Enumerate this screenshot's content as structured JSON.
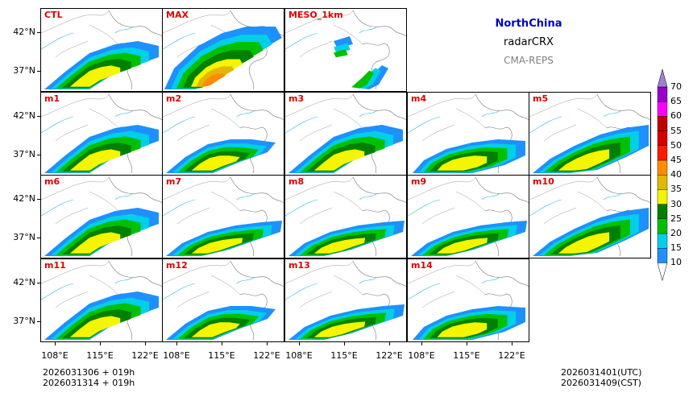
{
  "title": {
    "region": "NorthChina",
    "product": "radarCRX",
    "system": "CMA-REPS",
    "region_color": "#0000cc",
    "system_color": "#808080"
  },
  "panels": [
    {
      "label": "CTL",
      "pattern": "full"
    },
    {
      "label": "MAX",
      "pattern": "max"
    },
    {
      "label": "MESO_1km",
      "pattern": "meso"
    },
    {
      "label": "m1",
      "pattern": "full"
    },
    {
      "label": "m2",
      "pattern": "weak"
    },
    {
      "label": "m3",
      "pattern": "full"
    },
    {
      "label": "m4",
      "pattern": "south"
    },
    {
      "label": "m5",
      "pattern": "east"
    },
    {
      "label": "m6",
      "pattern": "full"
    },
    {
      "label": "m7",
      "pattern": "band"
    },
    {
      "label": "m8",
      "pattern": "band"
    },
    {
      "label": "m9",
      "pattern": "band"
    },
    {
      "label": "m10",
      "pattern": "east"
    },
    {
      "label": "m11",
      "pattern": "full"
    },
    {
      "label": "m12",
      "pattern": "weak"
    },
    {
      "label": "m13",
      "pattern": "band"
    },
    {
      "label": "m14",
      "pattern": "south"
    }
  ],
  "y_ticks": [
    "42°N",
    "37°N"
  ],
  "x_ticks": [
    "108°E",
    "115°E",
    "122°E"
  ],
  "colorbar": {
    "levels": [
      "10",
      "15",
      "20",
      "25",
      "30",
      "35",
      "40",
      "45",
      "50",
      "55",
      "60",
      "65",
      "70"
    ],
    "colors": [
      "#1e90ff",
      "#00cfe8",
      "#00c000",
      "#008000",
      "#f5f500",
      "#e2b800",
      "#ff8c00",
      "#ff1a00",
      "#d40000",
      "#c00000",
      "#ff00ff",
      "#9900cc",
      "#a080d0"
    ]
  },
  "footer": {
    "init_line1": "2026031306  +  019h",
    "init_line2": "2026031314  +  019h",
    "valid_utc": "2026031401(UTC)",
    "valid_cst": "2026031409(CST)"
  }
}
